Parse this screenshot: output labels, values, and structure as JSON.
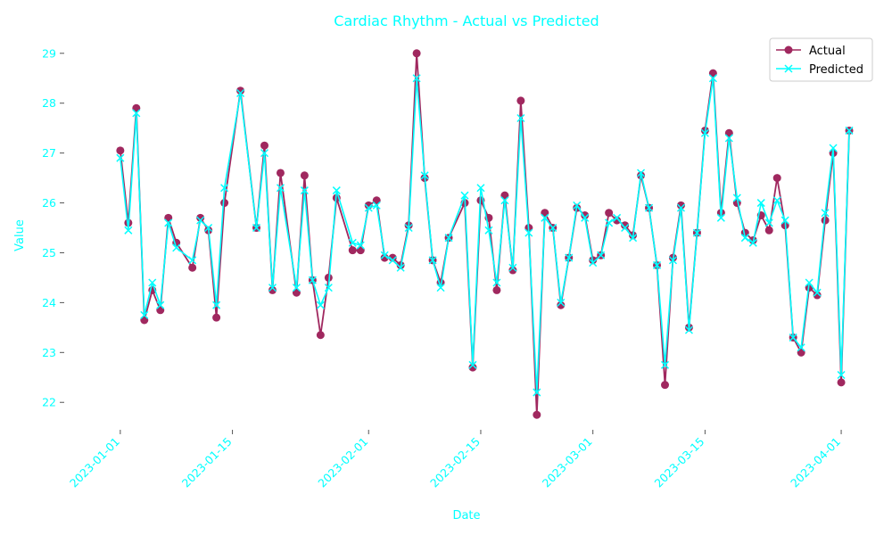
{
  "colors": {
    "text": "#00ffff",
    "actual": "#a0285f",
    "predicted": "#00ffff",
    "axis": "#555555",
    "legend_border": "#cccccc"
  },
  "chart_data": {
    "type": "line",
    "title": "Cardiac Rhythm - Actual vs Predicted",
    "xlabel": "Date",
    "ylabel": "Value",
    "xlim": [
      "2022-12-25",
      "2023-04-04"
    ],
    "ylim": [
      21.45,
      29.3
    ],
    "x_ticks": [
      "2023-01-01",
      "2023-01-15",
      "2023-02-01",
      "2023-02-15",
      "2023-03-01",
      "2023-03-15",
      "2023-04-01"
    ],
    "y_ticks": [
      22,
      23,
      24,
      25,
      26,
      27,
      28,
      29
    ],
    "legend_position": "top-right",
    "grid": false,
    "series": [
      {
        "name": "Actual",
        "marker": "circle",
        "points": [
          [
            "2023-01-01",
            27.05
          ],
          [
            "2023-01-02",
            25.6
          ],
          [
            "2023-01-03",
            27.9
          ],
          [
            "2023-01-04",
            23.65
          ],
          [
            "2023-01-05",
            24.25
          ],
          [
            "2023-01-06",
            23.85
          ],
          [
            "2023-01-07",
            25.7
          ],
          [
            "2023-01-08",
            25.2
          ],
          [
            "2023-01-10",
            24.7
          ],
          [
            "2023-01-11",
            25.7
          ],
          [
            "2023-01-12",
            25.45
          ],
          [
            "2023-01-13",
            23.7
          ],
          [
            "2023-01-14",
            26.0
          ],
          [
            "2023-01-16",
            28.25
          ],
          [
            "2023-01-18",
            25.5
          ],
          [
            "2023-01-19",
            27.15
          ],
          [
            "2023-01-20",
            24.25
          ],
          [
            "2023-01-21",
            26.6
          ],
          [
            "2023-01-23",
            24.2
          ],
          [
            "2023-01-24",
            26.55
          ],
          [
            "2023-01-25",
            24.45
          ],
          [
            "2023-01-26",
            23.35
          ],
          [
            "2023-01-27",
            24.5
          ],
          [
            "2023-01-28",
            26.1
          ],
          [
            "2023-01-30",
            25.05
          ],
          [
            "2023-01-31",
            25.05
          ],
          [
            "2023-02-01",
            25.95
          ],
          [
            "2023-02-02",
            26.05
          ],
          [
            "2023-02-03",
            24.9
          ],
          [
            "2023-02-04",
            24.9
          ],
          [
            "2023-02-05",
            24.75
          ],
          [
            "2023-02-06",
            25.55
          ],
          [
            "2023-02-07",
            29.0
          ],
          [
            "2023-02-08",
            26.5
          ],
          [
            "2023-02-09",
            24.85
          ],
          [
            "2023-02-10",
            24.4
          ],
          [
            "2023-02-11",
            25.3
          ],
          [
            "2023-02-13",
            26.0
          ],
          [
            "2023-02-14",
            22.7
          ],
          [
            "2023-02-15",
            26.05
          ],
          [
            "2023-02-16",
            25.7
          ],
          [
            "2023-02-17",
            24.25
          ],
          [
            "2023-02-18",
            26.15
          ],
          [
            "2023-02-19",
            24.65
          ],
          [
            "2023-02-20",
            28.05
          ],
          [
            "2023-02-21",
            25.5
          ],
          [
            "2023-02-22",
            21.75
          ],
          [
            "2023-02-23",
            25.8
          ],
          [
            "2023-02-24",
            25.5
          ],
          [
            "2023-02-25",
            23.95
          ],
          [
            "2023-02-26",
            24.9
          ],
          [
            "2023-02-27",
            25.9
          ],
          [
            "2023-02-28",
            25.75
          ],
          [
            "2023-03-01",
            24.85
          ],
          [
            "2023-03-02",
            24.95
          ],
          [
            "2023-03-03",
            25.8
          ],
          [
            "2023-03-04",
            25.65
          ],
          [
            "2023-03-05",
            25.55
          ],
          [
            "2023-03-06",
            25.35
          ],
          [
            "2023-03-07",
            26.55
          ],
          [
            "2023-03-08",
            25.9
          ],
          [
            "2023-03-09",
            24.75
          ],
          [
            "2023-03-10",
            22.35
          ],
          [
            "2023-03-11",
            24.9
          ],
          [
            "2023-03-12",
            25.95
          ],
          [
            "2023-03-13",
            23.5
          ],
          [
            "2023-03-14",
            25.4
          ],
          [
            "2023-03-15",
            27.45
          ],
          [
            "2023-03-16",
            28.6
          ],
          [
            "2023-03-17",
            25.8
          ],
          [
            "2023-03-18",
            27.4
          ],
          [
            "2023-03-19",
            26.0
          ],
          [
            "2023-03-20",
            25.4
          ],
          [
            "2023-03-21",
            25.25
          ],
          [
            "2023-03-22",
            25.75
          ],
          [
            "2023-03-23",
            25.45
          ],
          [
            "2023-03-24",
            26.5
          ],
          [
            "2023-03-25",
            25.55
          ],
          [
            "2023-03-26",
            23.3
          ],
          [
            "2023-03-27",
            23.0
          ],
          [
            "2023-03-28",
            24.3
          ],
          [
            "2023-03-29",
            24.15
          ],
          [
            "2023-03-30",
            25.65
          ],
          [
            "2023-03-31",
            27.0
          ],
          [
            "2023-04-01",
            22.4
          ],
          [
            "2023-04-02",
            27.45
          ]
        ]
      },
      {
        "name": "Predicted",
        "marker": "x",
        "points": [
          [
            "2023-01-01",
            26.9
          ],
          [
            "2023-01-02",
            25.45
          ],
          [
            "2023-01-03",
            27.8
          ],
          [
            "2023-01-04",
            23.75
          ],
          [
            "2023-01-05",
            24.4
          ],
          [
            "2023-01-06",
            23.95
          ],
          [
            "2023-01-07",
            25.6
          ],
          [
            "2023-01-08",
            25.1
          ],
          [
            "2023-01-10",
            24.85
          ],
          [
            "2023-01-11",
            25.65
          ],
          [
            "2023-01-12",
            25.5
          ],
          [
            "2023-01-13",
            23.95
          ],
          [
            "2023-01-14",
            26.3
          ],
          [
            "2023-01-16",
            28.2
          ],
          [
            "2023-01-18",
            25.5
          ],
          [
            "2023-01-19",
            27.0
          ],
          [
            "2023-01-20",
            24.3
          ],
          [
            "2023-01-21",
            26.3
          ],
          [
            "2023-01-23",
            24.3
          ],
          [
            "2023-01-24",
            26.25
          ],
          [
            "2023-01-25",
            24.45
          ],
          [
            "2023-01-26",
            23.95
          ],
          [
            "2023-01-27",
            24.3
          ],
          [
            "2023-01-28",
            26.25
          ],
          [
            "2023-01-30",
            25.2
          ],
          [
            "2023-01-31",
            25.15
          ],
          [
            "2023-02-01",
            25.9
          ],
          [
            "2023-02-02",
            25.95
          ],
          [
            "2023-02-03",
            24.95
          ],
          [
            "2023-02-04",
            24.85
          ],
          [
            "2023-02-05",
            24.7
          ],
          [
            "2023-02-06",
            25.5
          ],
          [
            "2023-02-07",
            28.5
          ],
          [
            "2023-02-08",
            26.55
          ],
          [
            "2023-02-09",
            24.85
          ],
          [
            "2023-02-10",
            24.3
          ],
          [
            "2023-02-11",
            25.3
          ],
          [
            "2023-02-13",
            26.15
          ],
          [
            "2023-02-14",
            22.75
          ],
          [
            "2023-02-15",
            26.3
          ],
          [
            "2023-02-16",
            25.45
          ],
          [
            "2023-02-17",
            24.4
          ],
          [
            "2023-02-18",
            26.05
          ],
          [
            "2023-02-19",
            24.7
          ],
          [
            "2023-02-20",
            27.7
          ],
          [
            "2023-02-21",
            25.4
          ],
          [
            "2023-02-22",
            22.2
          ],
          [
            "2023-02-23",
            25.7
          ],
          [
            "2023-02-24",
            25.5
          ],
          [
            "2023-02-25",
            24.0
          ],
          [
            "2023-02-26",
            24.9
          ],
          [
            "2023-02-27",
            25.95
          ],
          [
            "2023-02-28",
            25.7
          ],
          [
            "2023-03-01",
            24.8
          ],
          [
            "2023-03-02",
            24.95
          ],
          [
            "2023-03-03",
            25.6
          ],
          [
            "2023-03-04",
            25.7
          ],
          [
            "2023-03-05",
            25.5
          ],
          [
            "2023-03-06",
            25.3
          ],
          [
            "2023-03-07",
            26.6
          ],
          [
            "2023-03-08",
            25.9
          ],
          [
            "2023-03-09",
            24.75
          ],
          [
            "2023-03-10",
            22.75
          ],
          [
            "2023-03-11",
            24.85
          ],
          [
            "2023-03-12",
            25.9
          ],
          [
            "2023-03-13",
            23.45
          ],
          [
            "2023-03-14",
            25.4
          ],
          [
            "2023-03-15",
            27.4
          ],
          [
            "2023-03-16",
            28.5
          ],
          [
            "2023-03-17",
            25.7
          ],
          [
            "2023-03-18",
            27.3
          ],
          [
            "2023-03-19",
            26.1
          ],
          [
            "2023-03-20",
            25.3
          ],
          [
            "2023-03-21",
            25.2
          ],
          [
            "2023-03-22",
            26.0
          ],
          [
            "2023-03-23",
            25.6
          ],
          [
            "2023-03-24",
            26.05
          ],
          [
            "2023-03-25",
            25.65
          ],
          [
            "2023-03-26",
            23.3
          ],
          [
            "2023-03-27",
            23.1
          ],
          [
            "2023-03-28",
            24.4
          ],
          [
            "2023-03-29",
            24.2
          ],
          [
            "2023-03-30",
            25.8
          ],
          [
            "2023-03-31",
            27.1
          ],
          [
            "2023-04-01",
            22.55
          ],
          [
            "2023-04-02",
            27.45
          ]
        ]
      }
    ]
  }
}
